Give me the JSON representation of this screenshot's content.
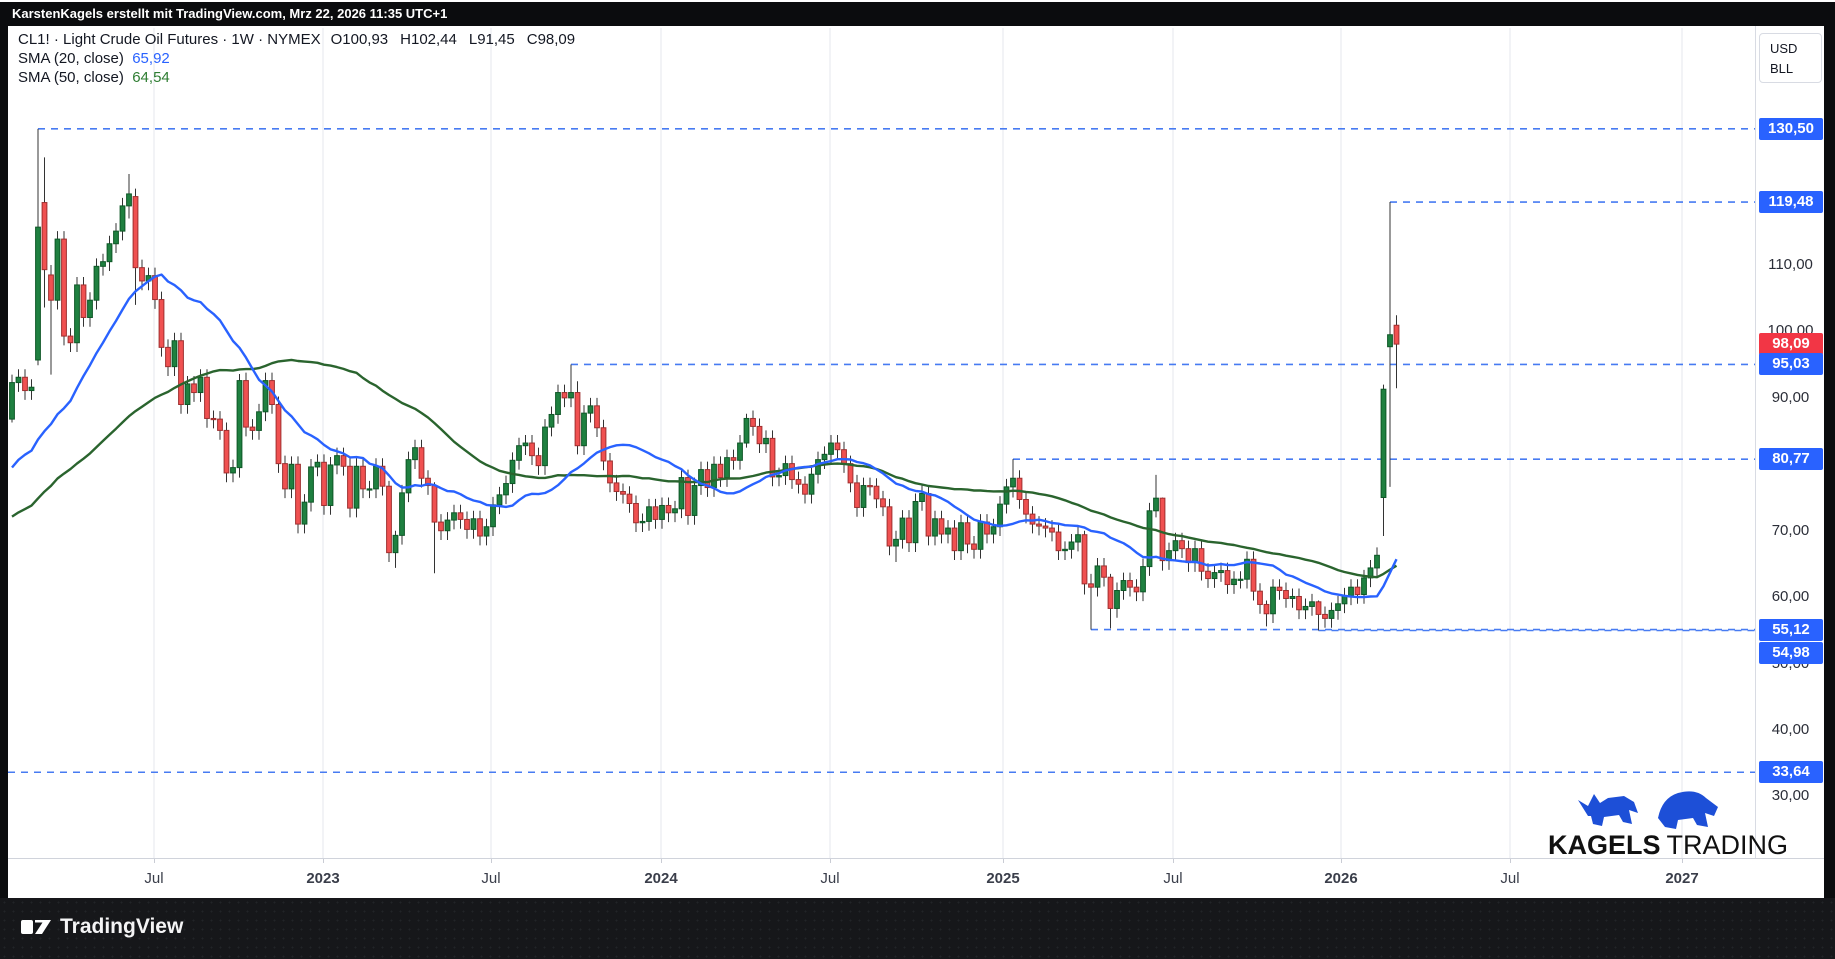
{
  "header": {
    "text": "KarstenKagels erstellt mit TradingView.com, Mrz 22, 2026 11:35 UTC+1"
  },
  "legend": {
    "instrument": "CL1! · Light Crude Oil Futures · 1W · NYMEX",
    "o": "O100,93",
    "h": "H102,44",
    "l": "L91,45",
    "c": "C98,09",
    "sma20_label": "SMA (20, close)",
    "sma20_value": "65,92",
    "sma50_label": "SMA (50, close)",
    "sma50_value": "64,54"
  },
  "axis_right": {
    "unit_top": "USD",
    "unit_bottom": "BLL",
    "ticks": [
      {
        "label": "110,00",
        "price": 110
      },
      {
        "label": "100,00",
        "price": 100
      },
      {
        "label": "90,00",
        "price": 90
      },
      {
        "label": "70,00",
        "price": 70
      },
      {
        "label": "60,00",
        "price": 60
      },
      {
        "label": "50,00",
        "price": 50
      },
      {
        "label": "40,00",
        "price": 40
      },
      {
        "label": "30,00",
        "price": 30
      }
    ],
    "badges": [
      {
        "label": "130,50",
        "price": 130.5,
        "color": "#2962FF"
      },
      {
        "label": "119,48",
        "price": 119.48,
        "color": "#2962FF"
      },
      {
        "label": "98,09",
        "price": 98.09,
        "color": "#F23645"
      },
      {
        "label": "95,03",
        "price": 95.03,
        "color": "#2962FF"
      },
      {
        "label": "80,77",
        "price": 80.77,
        "color": "#2962FF"
      },
      {
        "label": "55,12",
        "price": 55.12,
        "color": "#2962FF"
      },
      {
        "label": "54,98",
        "price": 54.98,
        "color": "#2962FF"
      },
      {
        "label": "33,64",
        "price": 33.64,
        "color": "#2962FF"
      }
    ]
  },
  "axis_bottom": {
    "labels": [
      {
        "text": "Jul",
        "bold": false
      },
      {
        "text": "2023",
        "bold": true
      },
      {
        "text": "Jul",
        "bold": false
      },
      {
        "text": "2024",
        "bold": true
      },
      {
        "text": "Jul",
        "bold": false
      },
      {
        "text": "2025",
        "bold": true
      },
      {
        "text": "Jul",
        "bold": false
      },
      {
        "text": "2026",
        "bold": true
      },
      {
        "text": "Jul",
        "bold": false
      },
      {
        "text": "2027",
        "bold": true
      }
    ]
  },
  "watermark": {
    "brand_bold": "KAGELS",
    "brand_regular": "TRADING",
    "icon_color": "#1d4fd7"
  },
  "footer": {
    "logo_text": "TradingView"
  },
  "colors": {
    "up_fill": "#1f8040",
    "up_stroke": "#0e5727",
    "down_fill": "#f05151",
    "down_stroke": "#9f2f2f",
    "wick": "#333333",
    "sma20": "#2962FF",
    "sma50": "#2a642e",
    "level_dash": "#477bf2",
    "grid": "#e4e7ee",
    "badge_blue": "#2962FF",
    "badge_red": "#F23645"
  },
  "chart_data": {
    "type": "candlestick",
    "title": "CL1! Light Crude Oil Futures, Weekly, NYMEX",
    "interval": "1W",
    "unit": "USD/BLL",
    "ylim": [
      22,
      146
    ],
    "grid": "vertical-only",
    "last_bar": {
      "open": 100.93,
      "high": 102.44,
      "low": 91.45,
      "close": 98.09
    },
    "indicators": [
      {
        "name": "SMA 20",
        "period": 20,
        "last_value": 65.92
      },
      {
        "name": "SMA 50",
        "period": 50,
        "last_value": 64.54
      }
    ],
    "levels": [
      {
        "label": "130,50",
        "price": 130.5,
        "start_index": 4
      },
      {
        "label": "119,48",
        "price": 119.48,
        "start_index": 212
      },
      {
        "label": "95,03",
        "price": 95.03,
        "start_index": 86
      },
      {
        "label": "80,77",
        "price": 80.77,
        "start_index": 154
      },
      {
        "label": "55,12",
        "price": 55.12,
        "start_index": 166
      },
      {
        "label": "54,98",
        "price": 54.98,
        "start_index": 201
      },
      {
        "label": "33,64",
        "price": 33.64,
        "start_index": null
      }
    ],
    "history_for_sma": [
      59.5,
      61.5,
      66.1,
      65.6,
      61.4,
      57.8,
      61.4,
      59.3,
      62.1,
      63.6,
      65.6,
      66.3,
      64.9,
      61.9,
      63.8,
      66.4,
      70.3,
      71.3,
      74.1,
      71.6,
      74.2,
      75.2,
      71.1,
      74.1,
      73.9,
      68.3,
      62.3,
      68.7,
      69.3,
      72.6,
      71.5,
      69.7,
      75.9,
      79.3,
      82.3,
      83.8,
      83.6,
      84.6,
      80.8,
      76.1,
      68.2,
      66.3,
      71.7,
      73.8,
      78.9,
      79.0,
      83.8,
      85.1,
      88.2,
      86.8
    ],
    "closes": [
      92.3,
      93.1,
      91.1,
      91.6,
      115.7,
      109.3,
      104.7,
      113.9,
      99.3,
      98.3,
      107.0,
      102.1,
      104.7,
      109.8,
      110.5,
      113.2,
      115.1,
      118.9,
      120.7,
      109.6,
      107.6,
      108.4,
      104.8,
      97.6,
      94.7,
      98.6,
      89.0,
      92.1,
      90.8,
      93.1,
      86.9,
      86.8,
      85.1,
      78.7,
      79.5,
      92.6,
      85.6,
      85.1,
      87.9,
      92.6,
      89.0,
      80.1,
      76.3,
      80.0,
      71.0,
      74.3,
      79.6,
      80.3,
      73.8,
      79.9,
      81.3,
      79.7,
      73.4,
      79.7,
      76.3,
      76.3,
      79.7,
      76.7,
      66.7,
      69.3,
      75.7,
      80.7,
      82.5,
      77.9,
      76.8,
      71.3,
      70.0,
      71.6,
      72.7,
      71.7,
      70.2,
      71.8,
      69.2,
      70.6,
      73.9,
      75.4,
      77.1,
      80.6,
      82.8,
      83.2,
      81.3,
      79.8,
      85.6,
      87.5,
      90.8,
      90.0,
      90.8,
      82.8,
      87.7,
      88.8,
      85.5,
      80.5,
      77.2,
      75.9,
      75.5,
      74.1,
      71.2,
      71.4,
      73.6,
      71.7,
      73.8,
      72.7,
      73.3,
      78.0,
      72.3,
      76.8,
      79.2,
      76.5,
      80.0,
      78.0,
      81.0,
      80.6,
      83.2,
      86.9,
      85.7,
      83.1,
      83.9,
      78.1,
      78.3,
      80.1,
      77.7,
      77.0,
      75.5,
      78.5,
      80.7,
      81.5,
      83.2,
      82.2,
      80.1,
      77.2,
      73.5,
      76.8,
      76.7,
      74.8,
      73.6,
      67.7,
      68.7,
      71.9,
      68.2,
      74.4,
      75.6,
      69.2,
      71.8,
      69.5,
      70.4,
      67.0,
      71.2,
      68.0,
      67.2,
      71.3,
      69.5,
      70.6,
      74.0,
      76.6,
      77.9,
      74.7,
      72.5,
      71.0,
      70.7,
      70.4,
      69.8,
      67.0,
      67.2,
      68.3,
      69.4,
      62.0,
      61.5,
      64.7,
      63.0,
      58.3,
      61.0,
      62.5,
      61.5,
      60.8,
      64.6,
      73.0,
      74.9,
      65.5,
      67.0,
      68.5,
      67.3,
      65.2,
      67.3,
      63.9,
      62.8,
      63.7,
      64.0,
      61.9,
      62.7,
      62.7,
      65.7,
      60.9,
      58.9,
      57.5,
      61.5,
      61.0,
      59.8,
      60.1,
      58.1,
      58.6,
      59.3,
      57.4,
      56.8,
      58.0,
      59.0,
      60.2,
      61.5,
      60.4,
      62.9,
      64.4,
      66.3,
      91.3,
      99.5,
      98.09
    ],
    "ohlc_overrides": {
      "0": [
        86.8,
        93.5,
        86.3,
        92.3
      ],
      "4": [
        95.7,
        130.5,
        94.9,
        115.7
      ],
      "5": [
        119.4,
        126.2,
        103.6,
        109.3
      ],
      "6": [
        108.5,
        110.0,
        93.5,
        104.7
      ],
      "18": [
        118.9,
        123.7,
        117.0,
        120.7
      ],
      "19": [
        120.3,
        121.5,
        104.0,
        109.6
      ],
      "35": [
        79.5,
        93.6,
        78.0,
        92.6
      ],
      "58": [
        76.7,
        77.5,
        65.3,
        66.7
      ],
      "59": [
        66.7,
        70.0,
        64.4,
        69.3
      ],
      "65": [
        76.8,
        77.3,
        63.6,
        71.3
      ],
      "86": [
        90.0,
        95.03,
        88.6,
        90.8
      ],
      "87": [
        90.8,
        92.5,
        81.5,
        82.8
      ],
      "113": [
        83.2,
        87.6,
        82.5,
        86.9
      ],
      "136": [
        67.7,
        70.0,
        65.3,
        68.7
      ],
      "154": [
        76.6,
        80.77,
        75.0,
        77.9
      ],
      "165": [
        69.4,
        70.0,
        60.4,
        62.0
      ],
      "166": [
        62.0,
        63.5,
        55.12,
        61.5
      ],
      "169": [
        63.0,
        63.5,
        55.3,
        58.3
      ],
      "176": [
        73.0,
        78.4,
        72.0,
        74.9
      ],
      "177": [
        74.9,
        75.0,
        64.0,
        65.5
      ],
      "193": [
        58.9,
        59.5,
        55.6,
        57.5
      ],
      "201": [
        59.3,
        59.5,
        54.98,
        57.4
      ],
      "211": [
        75.0,
        92.0,
        69.2,
        91.3
      ],
      "212": [
        97.7,
        119.48,
        76.6,
        99.5
      ],
      "213": [
        100.93,
        102.44,
        91.45,
        98.09
      ]
    }
  }
}
